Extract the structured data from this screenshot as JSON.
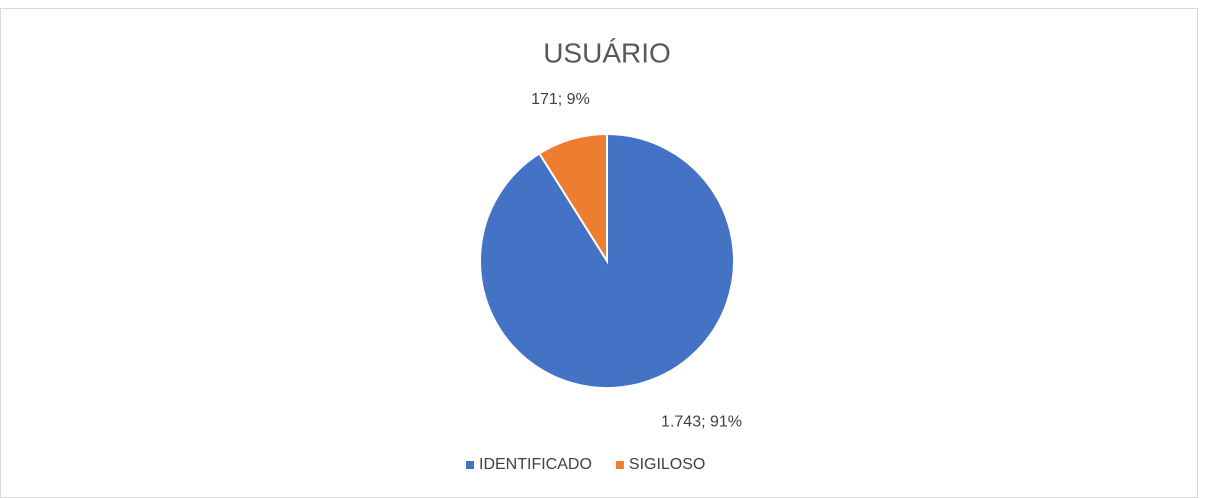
{
  "chart_data": {
    "type": "pie",
    "title": "USUÁRIO",
    "categories": [
      "IDENTIFICADO",
      "SIGILOSO"
    ],
    "values": [
      1743,
      171
    ],
    "value_labels": [
      "1.743; 91%",
      "171; 9%"
    ],
    "colors": [
      "#4472c4",
      "#ed7d31"
    ],
    "legend": "bottom"
  }
}
